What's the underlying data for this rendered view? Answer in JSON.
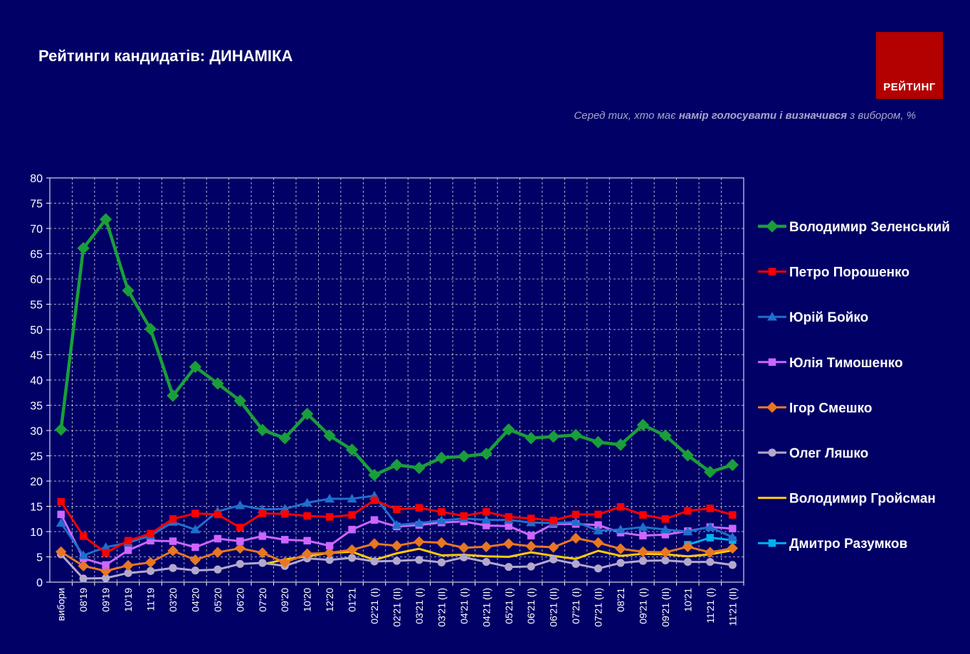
{
  "header": {
    "title": "Рейтинги кандидатів: ДИНАМІКА",
    "logo_text": "РЕЙТИНГ",
    "subtitle_pre": "Серед тих, хто має ",
    "subtitle_bold": "намір голосувати і визначився",
    "subtitle_post": " з вибором, %"
  },
  "chart_data": {
    "type": "line",
    "title": "Рейтинги кандидатів: ДИНАМІКА",
    "ylim": [
      0,
      80
    ],
    "yticks": [
      0,
      5,
      10,
      15,
      20,
      25,
      30,
      35,
      40,
      45,
      50,
      55,
      60,
      65,
      70,
      75,
      80
    ],
    "grid": true,
    "legend_position": "right",
    "categories": [
      "вибори",
      "08'19",
      "09'19",
      "10'19",
      "11'19",
      "03'20",
      "04'20",
      "05'20",
      "06'20",
      "07'20",
      "09'20",
      "10'20",
      "12'20",
      "01'21",
      "02'21 (I)",
      "02'21 (II)",
      "03'21 (I)",
      "03'21 (II)",
      "04'21 (I)",
      "04'21 (II)",
      "05'21 (I)",
      "06'21 (I)",
      "06'21 (II)",
      "07'21 (I)",
      "07'21 (II)",
      "08'21",
      "09'21 (I)",
      "09'21 (II)",
      "10'21",
      "11'21 (I)",
      "11'21 (II)"
    ],
    "series": [
      {
        "name": "Володимир Зеленський",
        "color": "#1a9e3a",
        "marker": "diamond",
        "values": [
          30.2,
          66.1,
          71.8,
          57.7,
          50.1,
          36.9,
          42.6,
          39.3,
          35.9,
          30.1,
          28.5,
          33.3,
          29.0,
          26.2,
          21.2,
          23.2,
          22.6,
          24.6,
          24.9,
          25.4,
          30.2,
          28.5,
          28.8,
          29.1,
          27.7,
          27.2,
          31.1,
          29.0,
          25.1,
          21.8,
          23.2
        ]
      },
      {
        "name": "Петро Порошенко",
        "color": "#ff0000",
        "marker": "square",
        "values": [
          15.9,
          9.1,
          5.8,
          8.2,
          9.6,
          12.5,
          13.6,
          13.4,
          10.8,
          13.6,
          13.5,
          13.1,
          12.9,
          13.3,
          16.2,
          14.4,
          14.7,
          13.9,
          13.1,
          13.9,
          12.9,
          12.6,
          12.2,
          13.4,
          13.4,
          14.9,
          13.3,
          12.5,
          14.1,
          14.6,
          13.3
        ]
      },
      {
        "name": "Юрій Бойко",
        "color": "#1f6fcc",
        "marker": "triangle",
        "values": [
          11.7,
          5.3,
          6.9,
          7.8,
          9.2,
          11.9,
          10.4,
          14.0,
          15.2,
          14.4,
          14.5,
          15.7,
          16.5,
          16.5,
          17.1,
          11.3,
          11.7,
          12.2,
          12.6,
          12.3,
          12.3,
          11.8,
          11.7,
          11.9,
          10.2,
          10.4,
          10.9,
          10.4,
          10.0,
          10.9,
          8.9
        ]
      },
      {
        "name": "Юлія Тимошенко",
        "color": "#cc66ff",
        "marker": "square",
        "values": [
          13.4,
          4.7,
          3.4,
          6.3,
          8.2,
          8.1,
          6.9,
          8.6,
          8.1,
          9.1,
          8.4,
          8.2,
          7.2,
          10.4,
          12.3,
          11.0,
          11.3,
          11.8,
          12.0,
          11.2,
          11.1,
          9.2,
          11.5,
          11.5,
          11.3,
          9.8,
          9.2,
          9.4,
          10.1,
          10.9,
          10.6
        ]
      },
      {
        "name": "Ігор Смешко",
        "color": "#e87722",
        "marker": "diamond",
        "values": [
          6.0,
          3.2,
          2.2,
          3.3,
          3.9,
          6.2,
          4.4,
          5.9,
          6.7,
          5.8,
          3.9,
          5.6,
          5.8,
          6.4,
          7.6,
          7.2,
          8.0,
          7.8,
          6.8,
          7.0,
          7.6,
          7.1,
          6.9,
          8.7,
          7.8,
          6.6,
          6.0,
          5.9,
          7.0,
          5.9,
          6.7
        ]
      },
      {
        "name": "Олег Ляшко",
        "color": "#b3a8cc",
        "marker": "circle",
        "values": [
          5.5,
          0.7,
          0.8,
          1.8,
          2.2,
          2.8,
          2.3,
          2.5,
          3.6,
          3.8,
          3.2,
          4.7,
          4.4,
          4.8,
          4.1,
          4.2,
          4.4,
          3.9,
          4.9,
          4.0,
          3.0,
          3.1,
          4.5,
          3.6,
          2.7,
          3.8,
          4.2,
          4.3,
          4.0,
          4.0,
          3.4
        ]
      },
      {
        "name": "Володимир Гройсман",
        "color": "#ffcc00",
        "marker": "none",
        "values": [
          null,
          null,
          null,
          null,
          null,
          null,
          null,
          null,
          null,
          3.5,
          4.5,
          5.1,
          5.8,
          6.0,
          4.4,
          5.7,
          6.6,
          5.3,
          5.4,
          5.1,
          5.0,
          5.9,
          5.2,
          4.6,
          6.2,
          5.2,
          5.6,
          5.5,
          5.1,
          5.5,
          6.3
        ]
      },
      {
        "name": "Дмитро Разумков",
        "color": "#00b0f0",
        "marker": "square",
        "values": [
          null,
          null,
          null,
          null,
          null,
          null,
          null,
          null,
          null,
          null,
          null,
          null,
          null,
          null,
          null,
          null,
          null,
          null,
          null,
          null,
          null,
          null,
          null,
          null,
          null,
          null,
          null,
          null,
          7.4,
          8.8,
          8.3
        ]
      }
    ]
  }
}
